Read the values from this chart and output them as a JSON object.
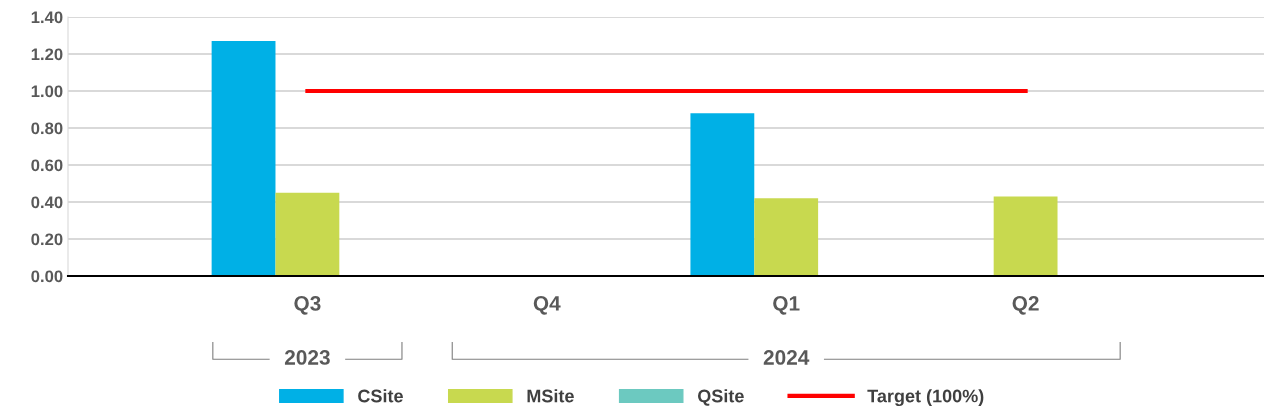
{
  "chart_data": {
    "type": "bar",
    "categories": [
      "Q3",
      "Q4",
      "Q1",
      "Q2"
    ],
    "series": [
      {
        "name": "CSite",
        "color": "#00b0e6",
        "values": [
          1.27,
          null,
          0.88,
          null
        ]
      },
      {
        "name": "MSite",
        "color": "#c8d94f",
        "values": [
          0.45,
          null,
          0.42,
          0.43
        ]
      },
      {
        "name": "QSite",
        "color": "#6cc9c0",
        "values": [
          null,
          null,
          null,
          null
        ]
      },
      {
        "name": "Target (100%)",
        "type": "line",
        "color": "#ff0000",
        "values": [
          1.0,
          1.0,
          1.0,
          1.0
        ]
      }
    ],
    "annotations": [
      "2023",
      "2024"
    ],
    "ylim": [
      0,
      1.4
    ],
    "yticks": [
      {
        "value": 0,
        "label": "0.00"
      },
      {
        "value": 0.2,
        "label": "0.20"
      },
      {
        "value": 0.4,
        "label": "0.40"
      },
      {
        "value": 0.6,
        "label": "0.60"
      },
      {
        "value": 0.8,
        "label": "0.80"
      },
      {
        "value": 1.0,
        "label": "1.00"
      },
      {
        "value": 1.2,
        "label": "1.20"
      },
      {
        "value": 1.4,
        "label": "1.40"
      }
    ],
    "grid": "y",
    "legend": "bottom",
    "marker": "none",
    "line_style": "solid"
  }
}
